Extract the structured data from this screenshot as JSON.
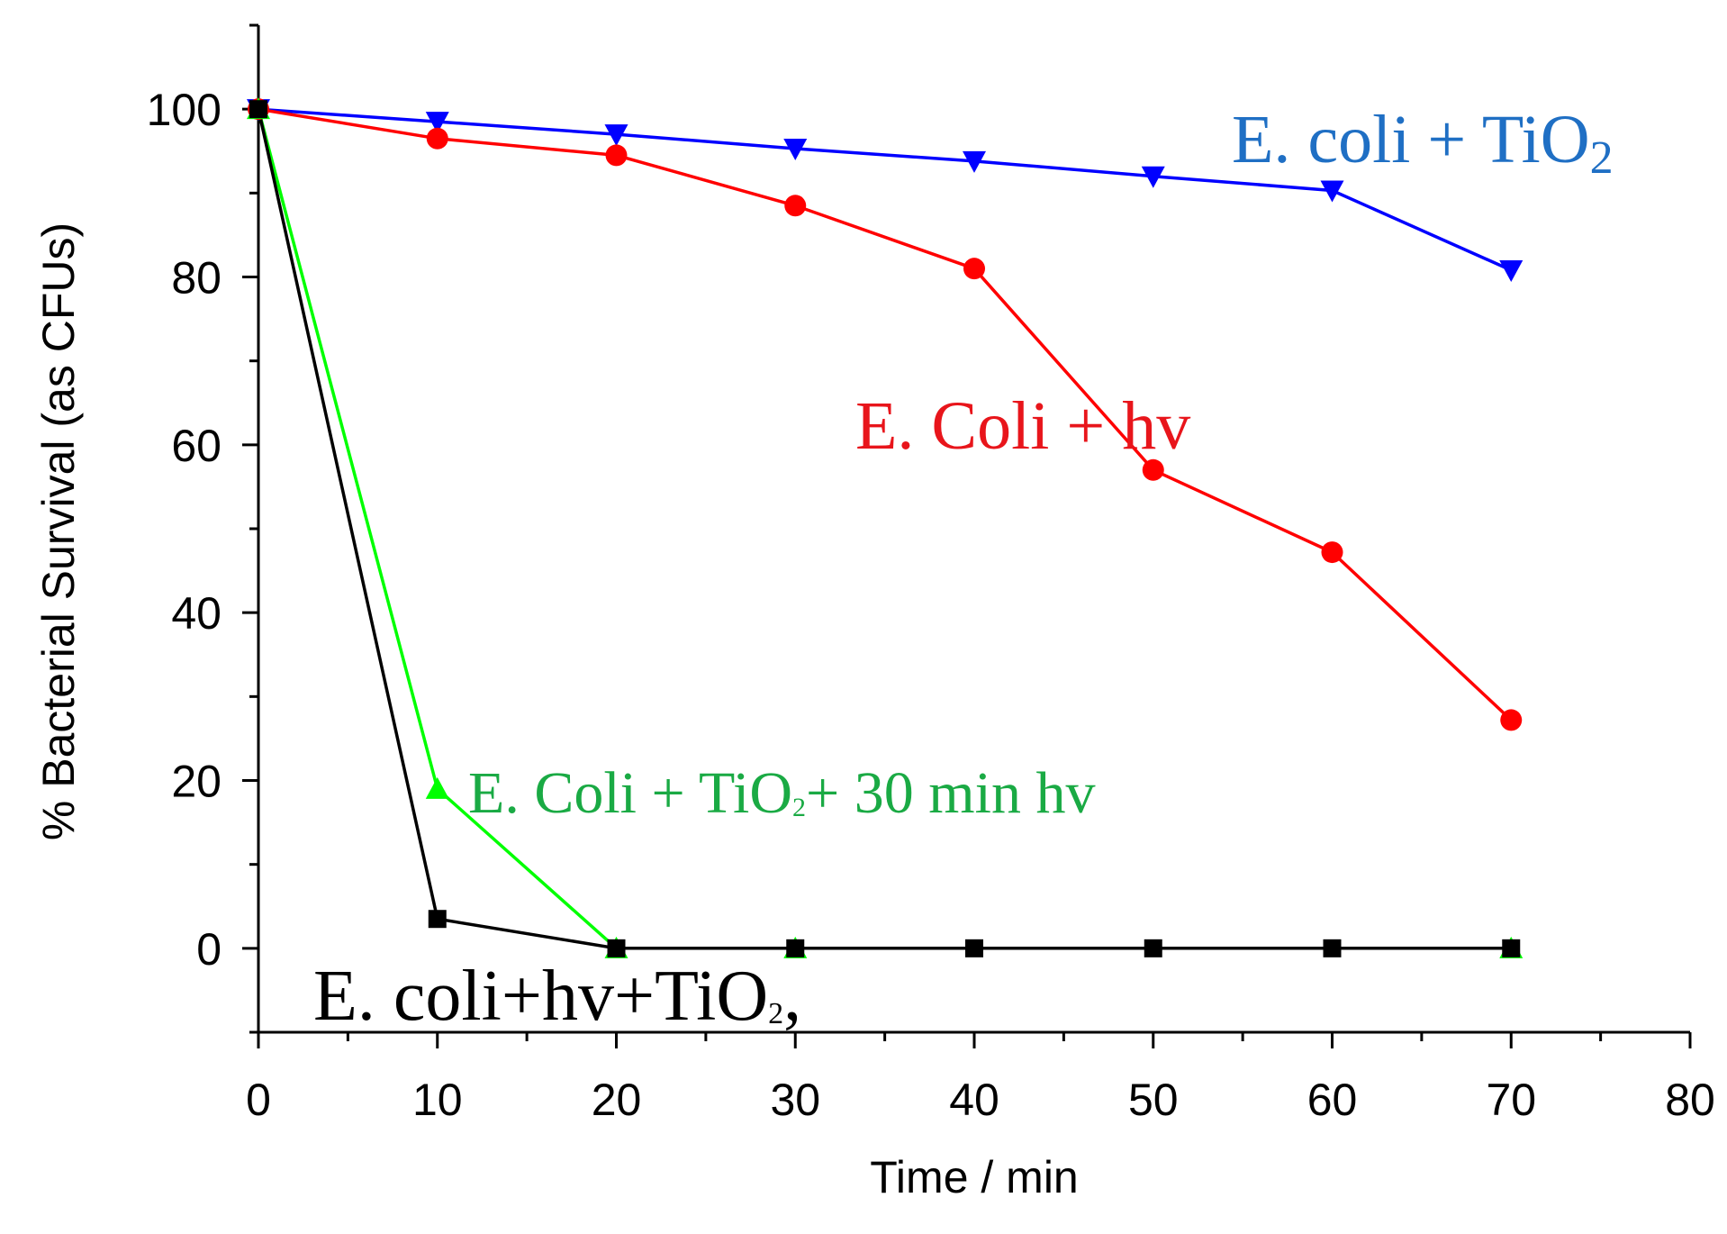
{
  "chart_data": {
    "type": "line",
    "title": "",
    "xlabel": "Time / min",
    "ylabel": "% Bacterial Survival (as CFUs)",
    "xlim": [
      0,
      80
    ],
    "ylim": [
      -10,
      110
    ],
    "xticks": [
      0,
      10,
      20,
      30,
      40,
      50,
      60,
      70,
      80
    ],
    "xtick_labels": [
      "0",
      "10",
      "20",
      "30",
      "40",
      "50",
      "60",
      "70",
      "80"
    ],
    "yticks": [
      0,
      20,
      40,
      60,
      80,
      100
    ],
    "ytick_labels": [
      "0",
      "20",
      "40",
      "60",
      "80",
      "100"
    ],
    "grid": false,
    "legend": "none (inline series labels)",
    "series": [
      {
        "name": "E. coli + TiO2",
        "label_main": "E. coli + TiO",
        "label_sub": "2",
        "color": "#0000ff",
        "label_color": "#1f6fc4",
        "marker": "triangle-down",
        "x": [
          0,
          10,
          20,
          30,
          40,
          50,
          60,
          70
        ],
        "y": [
          100,
          98.5,
          97,
          95.3,
          93.8,
          92,
          90.3,
          80.8
        ]
      },
      {
        "name": "E. Coli + hv",
        "label_main": "E. Coli + hv",
        "label_sub": "",
        "color": "#ff0000",
        "label_color": "#e8151b",
        "marker": "circle",
        "x": [
          0,
          10,
          20,
          30,
          40,
          50,
          60,
          70
        ],
        "y": [
          100,
          96.5,
          94.5,
          88.5,
          81,
          57,
          47.2,
          27.2
        ]
      },
      {
        "name": "E. Coli + TiO2 + 30 min hv",
        "label_main": "E. Coli + TiO",
        "label_sub": "2",
        "label_tail": "+ 30 min hv",
        "color": "#00ff00",
        "label_color": "#1aaa44",
        "marker": "triangle-up",
        "x": [
          0,
          10,
          20,
          30,
          70
        ],
        "y": [
          100,
          19,
          0,
          0,
          0
        ]
      },
      {
        "name": "E. coli+hv+TiO2",
        "label_main": "E. coli+hv+TiO",
        "label_sub": "2",
        "label_tail": ",",
        "color": "#000000",
        "label_color": "#000000",
        "marker": "square",
        "x": [
          0,
          10,
          20,
          30,
          40,
          50,
          60,
          70
        ],
        "y": [
          100,
          3.5,
          0,
          0,
          0,
          0,
          0,
          0
        ]
      }
    ]
  }
}
